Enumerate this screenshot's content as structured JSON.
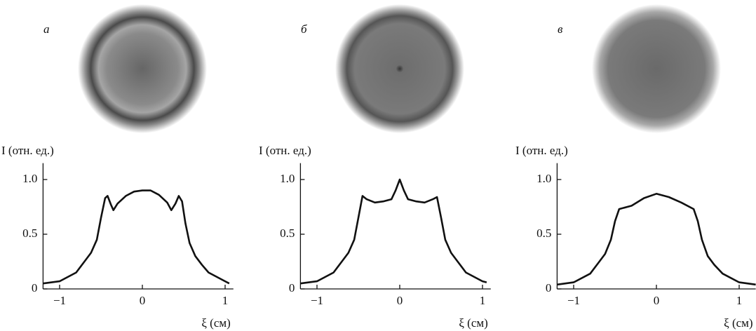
{
  "chart_data": [
    {
      "type": "line",
      "panel_label": "а",
      "y_label": "I (отн. ед.)",
      "x_label": "ξ (см)",
      "color": "#111111",
      "x": [
        -1.2,
        -1.0,
        -0.8,
        -0.7,
        -0.62,
        -0.55,
        -0.5,
        -0.45,
        -0.42,
        -0.38,
        -0.35,
        -0.3,
        -0.2,
        -0.1,
        0,
        0.1,
        0.2,
        0.3,
        0.35,
        0.4,
        0.44,
        0.48,
        0.52,
        0.57,
        0.64,
        0.72,
        0.8,
        1.0,
        1.05
      ],
      "values": [
        0.05,
        0.07,
        0.15,
        0.25,
        0.33,
        0.45,
        0.65,
        0.83,
        0.85,
        0.77,
        0.72,
        0.78,
        0.85,
        0.89,
        0.9,
        0.9,
        0.86,
        0.79,
        0.72,
        0.78,
        0.85,
        0.8,
        0.6,
        0.42,
        0.3,
        0.22,
        0.15,
        0.07,
        0.05
      ],
      "xlim": [
        -1.2,
        1.1
      ],
      "ylim": [
        0,
        1.15
      ],
      "xticks": [
        {
          "value": -1,
          "label": "−1"
        },
        0,
        1
      ],
      "yticks": [
        0,
        0.5,
        {
          "value": 1,
          "label": "1.0"
        }
      ]
    },
    {
      "type": "line",
      "panel_label": "б",
      "y_label": "I (отн. ед.)",
      "x_label": "ξ (см)",
      "color": "#111111",
      "x": [
        -1.2,
        -1.0,
        -0.8,
        -0.7,
        -0.62,
        -0.55,
        -0.5,
        -0.45,
        -0.4,
        -0.3,
        -0.2,
        -0.1,
        -0.05,
        0,
        0.05,
        0.1,
        0.2,
        0.3,
        0.4,
        0.45,
        0.5,
        0.55,
        0.62,
        0.7,
        0.8,
        1.0,
        1.05
      ],
      "values": [
        0.05,
        0.07,
        0.15,
        0.25,
        0.33,
        0.45,
        0.65,
        0.85,
        0.82,
        0.79,
        0.8,
        0.82,
        0.9,
        1.0,
        0.9,
        0.82,
        0.8,
        0.79,
        0.82,
        0.84,
        0.65,
        0.45,
        0.33,
        0.25,
        0.15,
        0.07,
        0.06
      ],
      "xlim": [
        -1.2,
        1.1
      ],
      "ylim": [
        0,
        1.15
      ],
      "xticks": [
        {
          "value": -1,
          "label": "−1"
        },
        0,
        1
      ],
      "yticks": [
        0,
        0.5,
        {
          "value": 1,
          "label": "1.0"
        }
      ]
    },
    {
      "type": "line",
      "panel_label": "в",
      "y_label": "I (отн. ед.)",
      "x_label": "ξ (см)",
      "color": "#111111",
      "x": [
        -1.2,
        -1.0,
        -0.8,
        -0.7,
        -0.62,
        -0.55,
        -0.5,
        -0.45,
        -0.3,
        -0.15,
        0,
        0.15,
        0.3,
        0.45,
        0.5,
        0.55,
        0.62,
        0.7,
        0.8,
        1.0,
        1.2
      ],
      "values": [
        0.04,
        0.06,
        0.14,
        0.24,
        0.32,
        0.45,
        0.62,
        0.73,
        0.76,
        0.83,
        0.87,
        0.84,
        0.79,
        0.73,
        0.62,
        0.45,
        0.3,
        0.22,
        0.14,
        0.06,
        0.04
      ],
      "xlim": [
        -1.2,
        1.2
      ],
      "ylim": [
        0,
        1.15
      ],
      "xticks": [
        {
          "value": -1,
          "label": "−1"
        },
        0,
        1
      ],
      "yticks": [
        0,
        0.5,
        {
          "value": 1,
          "label": "1.0"
        }
      ]
    }
  ]
}
